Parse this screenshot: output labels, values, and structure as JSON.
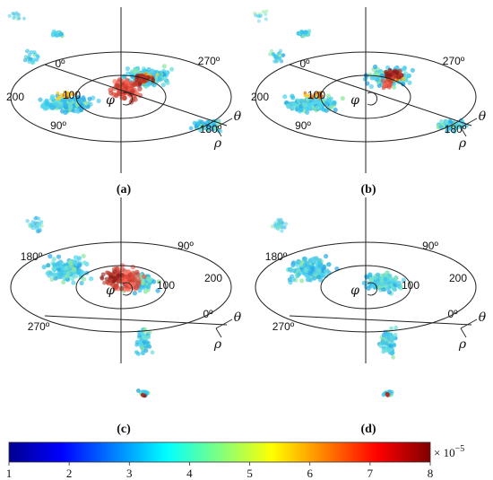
{
  "panels": [
    {
      "id": "a",
      "caption": "(a)",
      "ring_inner": "100",
      "ring_outer": "200",
      "angle_top": "0º",
      "angle_right": "270º",
      "angle_left_lower": "90º",
      "angle_right_lower": "180º",
      "variant": "top",
      "hot": "wide"
    },
    {
      "id": "b",
      "caption": "(b)",
      "ring_inner": "100",
      "ring_outer": "200",
      "angle_top": "0º",
      "angle_right": "270º",
      "angle_left_lower": "90º",
      "angle_right_lower": "180º",
      "variant": "top",
      "hot": "narrow"
    },
    {
      "id": "c",
      "caption": "(c)",
      "ring_inner": "100",
      "ring_outer": "200",
      "angle_top": "90º",
      "angle_right": "180º",
      "angle_left_lower": "270º",
      "angle_right_lower": "0º",
      "variant": "bottom",
      "hot": "wide"
    },
    {
      "id": "d",
      "caption": "(d)",
      "ring_inner": "100",
      "ring_outer": "200",
      "angle_top": "90º",
      "angle_right": "180º",
      "angle_left_lower": "270º",
      "angle_right_lower": "0º",
      "variant": "bottom",
      "hot": "none"
    }
  ],
  "symbols": {
    "phi": "φ",
    "theta": "θ",
    "rho": "ρ"
  },
  "colorbar": {
    "ticks": [
      "1",
      "2",
      "3",
      "4",
      "5",
      "6",
      "7",
      "8"
    ],
    "multiplier": "× 10",
    "exponent": "−5",
    "colormap": "jet",
    "colors": [
      "#00008f",
      "#0000ff",
      "#0080ff",
      "#00ffff",
      "#80ff80",
      "#ffff00",
      "#ff8000",
      "#ff0000",
      "#800000"
    ]
  }
}
